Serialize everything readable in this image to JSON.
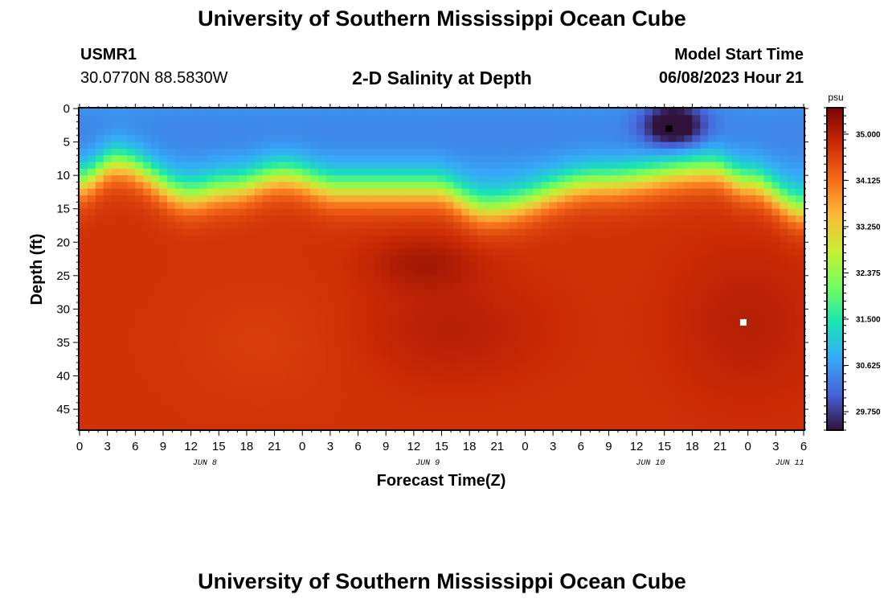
{
  "header": {
    "title": "University of Southern Mississippi Ocean Cube",
    "station_id": "USMR1",
    "station_coords": "30.0770N  88.5830W",
    "plot_title": "2-D Salinity at Depth",
    "model_start_label": "Model Start Time",
    "model_start_value": "06/08/2023 Hour 21"
  },
  "footer": {
    "title": "University of Southern Mississippi Ocean Cube"
  },
  "chart_data": {
    "type": "heatmap",
    "title": "2-D Salinity at Depth",
    "xlabel": "Forecast Time(Z)",
    "ylabel": "Depth (ft)",
    "x_tick_labels": [
      "0",
      "3",
      "6",
      "9",
      "12",
      "15",
      "18",
      "21",
      "0",
      "3",
      "6",
      "9",
      "12",
      "15",
      "18",
      "21",
      "0",
      "3",
      "6",
      "9",
      "12",
      "15",
      "18",
      "21",
      "0",
      "3",
      "6"
    ],
    "date_labels": [
      {
        "label": "JUN 8",
        "hour_index": 4.5
      },
      {
        "label": "JUN 9",
        "hour_index": 12.5
      },
      {
        "label": "JUN 10",
        "hour_index": 20.5
      },
      {
        "label": "JUN 11",
        "hour_index": 25.5
      }
    ],
    "y_ticks": [
      0,
      5,
      10,
      15,
      20,
      25,
      30,
      35,
      40,
      45
    ],
    "ylim": [
      0,
      48
    ],
    "x_range_hours": [
      0,
      78
    ],
    "y_inverted": true,
    "colorbar": {
      "unit": "psu",
      "ticks": [
        "35.000",
        "34.125",
        "33.250",
        "32.375",
        "31.500",
        "30.625",
        "29.750"
      ],
      "tick_values": [
        35.0,
        34.125,
        33.25,
        32.375,
        31.5,
        30.625,
        29.75
      ],
      "range": [
        29.4,
        35.5
      ],
      "colors": [
        "#30123b",
        "#4662d7",
        "#36aaf9",
        "#1ae4b6",
        "#72fe5e",
        "#c8ef34",
        "#faba39",
        "#f66b19",
        "#cb2a04",
        "#7a0403"
      ]
    },
    "markers": [
      {
        "color": "#000000",
        "hour": 63.5,
        "depth": 3,
        "meaning": "minimum"
      },
      {
        "color": "#ffffff",
        "hour": 71.5,
        "depth": 32,
        "meaning": "maximum"
      }
    ]
  }
}
